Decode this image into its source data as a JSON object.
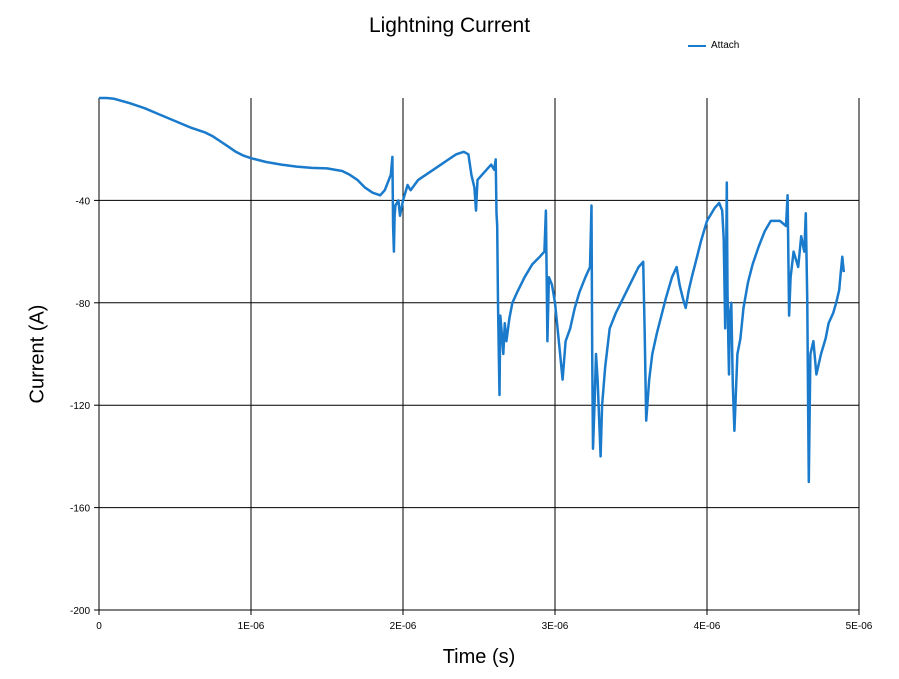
{
  "chart_data": {
    "type": "line",
    "title": "Lightning Current",
    "xlabel": "Time (s)",
    "ylabel": "Current (A)",
    "xlim": [
      0,
      5e-06
    ],
    "ylim": [
      -200,
      0
    ],
    "x_ticks": [
      0,
      1e-06,
      2e-06,
      3e-06,
      4e-06,
      5e-06
    ],
    "x_tick_labels": [
      "0",
      "1E-06",
      "2E-06",
      "3E-06",
      "4E-06",
      "5E-06"
    ],
    "y_ticks": [
      -200,
      -160,
      -120,
      -80,
      -40
    ],
    "y_tick_labels": [
      "-200",
      "-160",
      "-120",
      "-80",
      "-40"
    ],
    "grid": true,
    "legend_position": "top-right",
    "series": [
      {
        "name": "Attach",
        "color": "#1a7acb",
        "points": [
          [
            0.0,
            0.0
          ],
          [
            5e-08,
            0.0
          ],
          [
            1e-07,
            -0.3
          ],
          [
            2e-07,
            -2.0
          ],
          [
            3e-07,
            -4.0
          ],
          [
            4e-07,
            -6.5
          ],
          [
            5e-07,
            -9.0
          ],
          [
            6e-07,
            -11.5
          ],
          [
            7e-07,
            -13.5
          ],
          [
            7.5e-07,
            -15.0
          ],
          [
            8e-07,
            -17.0
          ],
          [
            8.5e-07,
            -19.0
          ],
          [
            9e-07,
            -21.0
          ],
          [
            9.5e-07,
            -22.5
          ],
          [
            1e-06,
            -23.5
          ],
          [
            1.1e-06,
            -25.0
          ],
          [
            1.2e-06,
            -26.0
          ],
          [
            1.3e-06,
            -26.8
          ],
          [
            1.4e-06,
            -27.3
          ],
          [
            1.5e-06,
            -27.5
          ],
          [
            1.6e-06,
            -28.5
          ],
          [
            1.65e-06,
            -30.0
          ],
          [
            1.7e-06,
            -32.0
          ],
          [
            1.75e-06,
            -35.0
          ],
          [
            1.8e-06,
            -37.0
          ],
          [
            1.85e-06,
            -38.0
          ],
          [
            1.88e-06,
            -36.0
          ],
          [
            1.9e-06,
            -33.0
          ],
          [
            1.92e-06,
            -30.0
          ],
          [
            1.93e-06,
            -23.0
          ],
          [
            1.935e-06,
            -50.0
          ],
          [
            1.94e-06,
            -60.0
          ],
          [
            1.945e-06,
            -46.0
          ],
          [
            1.95e-06,
            -42.0
          ],
          [
            1.97e-06,
            -40.0
          ],
          [
            1.98e-06,
            -46.0
          ],
          [
            2e-06,
            -40.0
          ],
          [
            2.03e-06,
            -34.0
          ],
          [
            2.05e-06,
            -36.0
          ],
          [
            2.1e-06,
            -32.0
          ],
          [
            2.15e-06,
            -30.0
          ],
          [
            2.2e-06,
            -28.0
          ],
          [
            2.25e-06,
            -26.0
          ],
          [
            2.3e-06,
            -24.0
          ],
          [
            2.35e-06,
            -22.0
          ],
          [
            2.4e-06,
            -21.0
          ],
          [
            2.43e-06,
            -22.0
          ],
          [
            2.45e-06,
            -30.0
          ],
          [
            2.47e-06,
            -35.0
          ],
          [
            2.48e-06,
            -44.0
          ],
          [
            2.49e-06,
            -32.0
          ],
          [
            2.52e-06,
            -30.0
          ],
          [
            2.55e-06,
            -28.0
          ],
          [
            2.58e-06,
            -26.0
          ],
          [
            2.6e-06,
            -28.0
          ],
          [
            2.61e-06,
            -24.0
          ],
          [
            2.615e-06,
            -45.0
          ],
          [
            2.62e-06,
            -50.0
          ],
          [
            2.625e-06,
            -80.0
          ],
          [
            2.63e-06,
            -100.0
          ],
          [
            2.635e-06,
            -116.0
          ],
          [
            2.64e-06,
            -85.0
          ],
          [
            2.65e-06,
            -92.0
          ],
          [
            2.66e-06,
            -100.0
          ],
          [
            2.67e-06,
            -88.0
          ],
          [
            2.68e-06,
            -95.0
          ],
          [
            2.7e-06,
            -86.0
          ],
          [
            2.72e-06,
            -80.0
          ],
          [
            2.75e-06,
            -76.0
          ],
          [
            2.8e-06,
            -70.0
          ],
          [
            2.85e-06,
            -65.0
          ],
          [
            2.9e-06,
            -62.0
          ],
          [
            2.93e-06,
            -60.0
          ],
          [
            2.94e-06,
            -44.0
          ],
          [
            2.95e-06,
            -95.0
          ],
          [
            2.96e-06,
            -70.0
          ],
          [
            2.98e-06,
            -73.0
          ],
          [
            3e-06,
            -80.0
          ],
          [
            3.03e-06,
            -98.0
          ],
          [
            3.05e-06,
            -110.0
          ],
          [
            3.07e-06,
            -95.0
          ],
          [
            3.1e-06,
            -90.0
          ],
          [
            3.13e-06,
            -82.0
          ],
          [
            3.16e-06,
            -76.0
          ],
          [
            3.2e-06,
            -70.0
          ],
          [
            3.23e-06,
            -66.0
          ],
          [
            3.24e-06,
            -42.0
          ],
          [
            3.245e-06,
            -100.0
          ],
          [
            3.25e-06,
            -137.0
          ],
          [
            3.26e-06,
            -120.0
          ],
          [
            3.27e-06,
            -100.0
          ],
          [
            3.28e-06,
            -110.0
          ],
          [
            3.3e-06,
            -140.0
          ],
          [
            3.31e-06,
            -120.0
          ],
          [
            3.33e-06,
            -105.0
          ],
          [
            3.36e-06,
            -90.0
          ],
          [
            3.4e-06,
            -84.0
          ],
          [
            3.45e-06,
            -78.0
          ],
          [
            3.5e-06,
            -72.0
          ],
          [
            3.55e-06,
            -66.0
          ],
          [
            3.58e-06,
            -64.0
          ],
          [
            3.59e-06,
            -92.0
          ],
          [
            3.6e-06,
            -126.0
          ],
          [
            3.62e-06,
            -110.0
          ],
          [
            3.64e-06,
            -100.0
          ],
          [
            3.67e-06,
            -92.0
          ],
          [
            3.7e-06,
            -85.0
          ],
          [
            3.73e-06,
            -78.0
          ],
          [
            3.77e-06,
            -70.0
          ],
          [
            3.8e-06,
            -66.0
          ],
          [
            3.82e-06,
            -73.0
          ],
          [
            3.84e-06,
            -78.0
          ],
          [
            3.86e-06,
            -82.0
          ],
          [
            3.88e-06,
            -75.0
          ],
          [
            3.9e-06,
            -70.0
          ],
          [
            3.93e-06,
            -63.0
          ],
          [
            3.96e-06,
            -56.0
          ],
          [
            4e-06,
            -48.0
          ],
          [
            4.05e-06,
            -43.0
          ],
          [
            4.08e-06,
            -41.0
          ],
          [
            4.1e-06,
            -44.0
          ],
          [
            4.11e-06,
            -55.0
          ],
          [
            4.12e-06,
            -90.0
          ],
          [
            4.125e-06,
            -70.0
          ],
          [
            4.13e-06,
            -33.0
          ],
          [
            4.135e-06,
            -75.0
          ],
          [
            4.14e-06,
            -95.0
          ],
          [
            4.145e-06,
            -108.0
          ],
          [
            4.15e-06,
            -85.0
          ],
          [
            4.16e-06,
            -80.0
          ],
          [
            4.17e-06,
            -112.0
          ],
          [
            4.18e-06,
            -130.0
          ],
          [
            4.19e-06,
            -115.0
          ],
          [
            4.2e-06,
            -100.0
          ],
          [
            4.22e-06,
            -94.0
          ],
          [
            4.24e-06,
            -82.0
          ],
          [
            4.27e-06,
            -72.0
          ],
          [
            4.3e-06,
            -65.0
          ],
          [
            4.34e-06,
            -58.0
          ],
          [
            4.38e-06,
            -52.0
          ],
          [
            4.42e-06,
            -48.0
          ],
          [
            4.48e-06,
            -48.0
          ],
          [
            4.52e-06,
            -50.0
          ],
          [
            4.53e-06,
            -38.0
          ],
          [
            4.54e-06,
            -85.0
          ],
          [
            4.55e-06,
            -70.0
          ],
          [
            4.57e-06,
            -60.0
          ],
          [
            4.6e-06,
            -66.0
          ],
          [
            4.62e-06,
            -54.0
          ],
          [
            4.64e-06,
            -60.0
          ],
          [
            4.65e-06,
            -45.0
          ],
          [
            4.66e-06,
            -80.0
          ],
          [
            4.665e-06,
            -120.0
          ],
          [
            4.67e-06,
            -150.0
          ],
          [
            4.68e-06,
            -100.0
          ],
          [
            4.7e-06,
            -95.0
          ],
          [
            4.72e-06,
            -108.0
          ],
          [
            4.75e-06,
            -100.0
          ],
          [
            4.78e-06,
            -94.0
          ],
          [
            4.8e-06,
            -88.0
          ],
          [
            4.83e-06,
            -84.0
          ],
          [
            4.85e-06,
            -80.0
          ],
          [
            4.87e-06,
            -75.0
          ],
          [
            4.88e-06,
            -68.0
          ],
          [
            4.89e-06,
            -62.0
          ],
          [
            4.9e-06,
            -68.0
          ]
        ]
      }
    ]
  }
}
